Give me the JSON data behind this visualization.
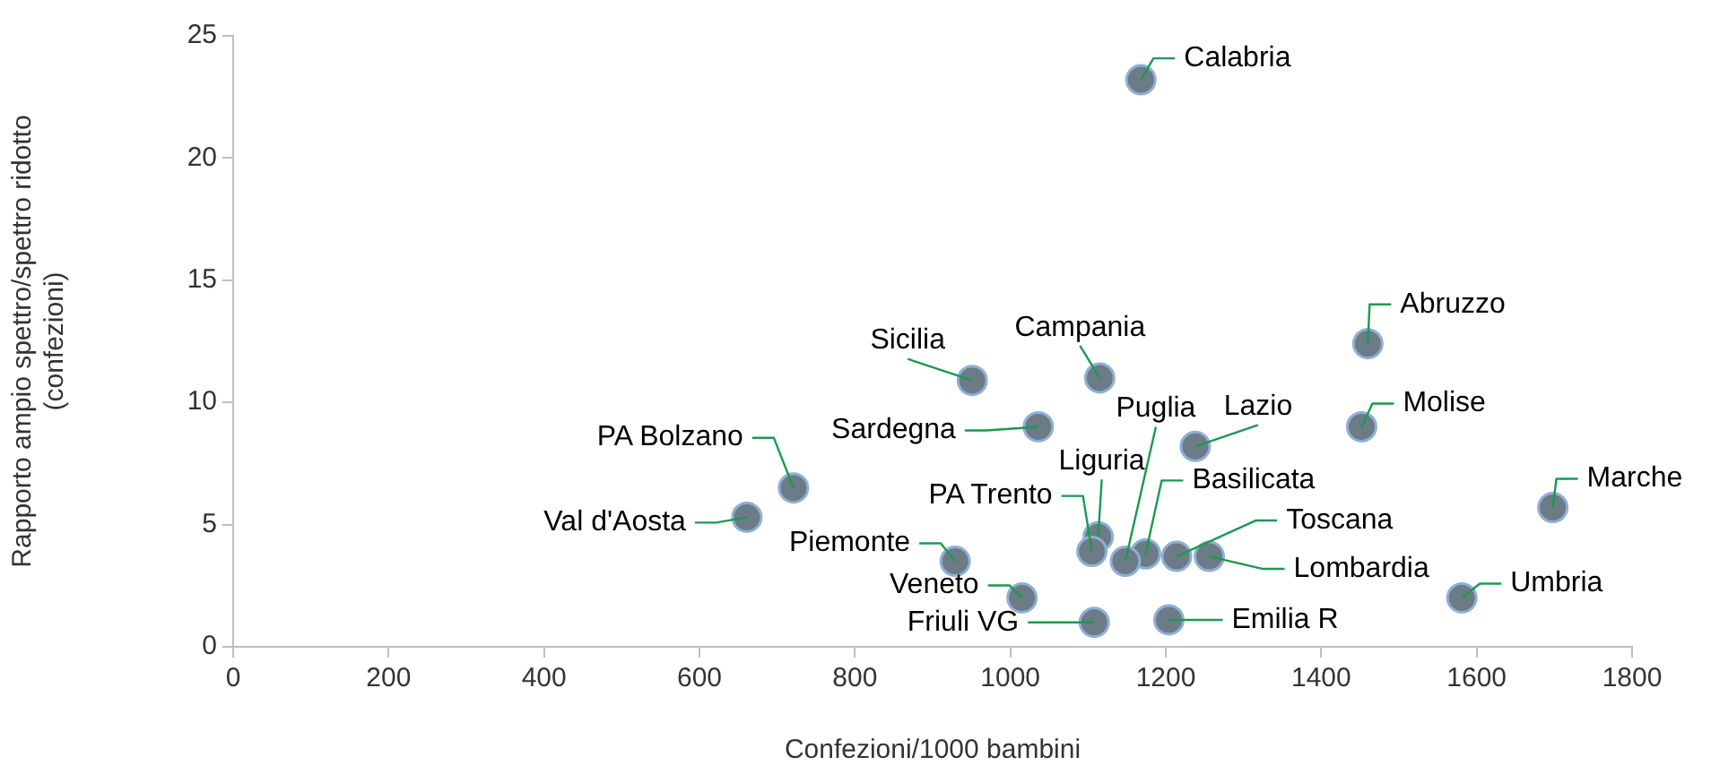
{
  "chart_data": {
    "type": "scatter",
    "xlabel": "Confezioni/1000 bambini",
    "ylabel": "Rapporto ampio spettro/spettro ridotto (confezioni)",
    "x": [
      1168,
      1460,
      1452,
      1698,
      1581,
      1256,
      1214,
      1174,
      1148,
      1113,
      1105,
      929,
      1015,
      1108,
      1204,
      661,
      721,
      951,
      1036,
      1115,
      1238
    ],
    "series": [
      {
        "color": "#6d7b86",
        "values": [
          23.2,
          12.4,
          9.0,
          5.7,
          2.0,
          3.7,
          3.7,
          3.8,
          3.5,
          4.5,
          3.9,
          3.5,
          2.0,
          1.0,
          1.1,
          5.3,
          6.5,
          10.9,
          9.0,
          11.0,
          8.2
        ]
      }
    ],
    "xlim": [
      0,
      1800
    ],
    "xticks": [
      0,
      200,
      400,
      600,
      800,
      1000,
      1200,
      1400,
      1600,
      1800
    ],
    "ylim": [
      0,
      25
    ],
    "yticks": [
      0,
      5,
      10,
      15,
      20,
      25
    ],
    "grid": false,
    "legend": false,
    "marker": "circle",
    "annotations": [
      {
        "text": "Calabria",
        "x": 1168,
        "y": 23.2
      },
      {
        "text": "Abruzzo",
        "x": 1460,
        "y": 12.4
      },
      {
        "text": "Molise",
        "x": 1452,
        "y": 9.0
      },
      {
        "text": "Marche",
        "x": 1698,
        "y": 5.7
      },
      {
        "text": "Umbria",
        "x": 1581,
        "y": 2.0
      },
      {
        "text": "Lombardia",
        "x": 1256,
        "y": 3.7
      },
      {
        "text": "Toscana",
        "x": 1214,
        "y": 3.7
      },
      {
        "text": "Basilicata",
        "x": 1174,
        "y": 3.8
      },
      {
        "text": "Puglia",
        "x": 1148,
        "y": 3.5
      },
      {
        "text": "Liguria",
        "x": 1113,
        "y": 4.5
      },
      {
        "text": "PA Trento",
        "x": 1105,
        "y": 3.9
      },
      {
        "text": "Piemonte",
        "x": 929,
        "y": 3.5
      },
      {
        "text": "Veneto",
        "x": 1015,
        "y": 2.0
      },
      {
        "text": "Friuli VG",
        "x": 1108,
        "y": 1.0
      },
      {
        "text": "Emilia R",
        "x": 1204,
        "y": 1.1
      },
      {
        "text": "Val d'Aosta",
        "x": 661,
        "y": 5.3
      },
      {
        "text": "PA Bolzano",
        "x": 721,
        "y": 6.5
      },
      {
        "text": "Sicilia",
        "x": 951,
        "y": 10.9
      },
      {
        "text": "Sardegna",
        "x": 1036,
        "y": 9.0
      },
      {
        "text": "Campania",
        "x": 1115,
        "y": 11.0
      },
      {
        "text": "Lazio",
        "x": 1238,
        "y": 8.2
      }
    ]
  }
}
